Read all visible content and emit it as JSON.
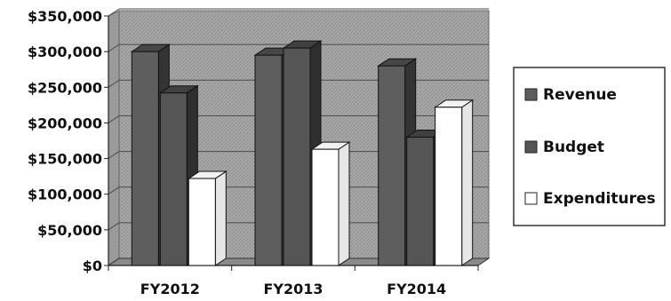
{
  "chart_data": {
    "type": "bar",
    "style": "3d-clustered-column",
    "title": "",
    "xlabel": "",
    "ylabel": "",
    "categories": [
      "FY2012",
      "FY2013",
      "FY2014"
    ],
    "ylim": [
      0,
      350000
    ],
    "ytick_values": [
      0,
      50000,
      100000,
      150000,
      200000,
      250000,
      300000,
      350000
    ],
    "ytick_labels": [
      "$0",
      "$50,000",
      "$100,000",
      "$150,000",
      "$200,000",
      "$250,000",
      "$300,000",
      "$350,000"
    ],
    "grid": true,
    "legend_position": "right",
    "series": [
      {
        "name": "Revenue",
        "values": [
          300000,
          295000,
          280000
        ],
        "color": "#5e5e5e"
      },
      {
        "name": "Budget",
        "values": [
          242000,
          305000,
          180000
        ],
        "color": "#555555"
      },
      {
        "name": "Expenditures",
        "values": [
          122000,
          163000,
          222000
        ],
        "color": "#ffffff"
      }
    ],
    "plot_background": "#a9a9a9"
  }
}
